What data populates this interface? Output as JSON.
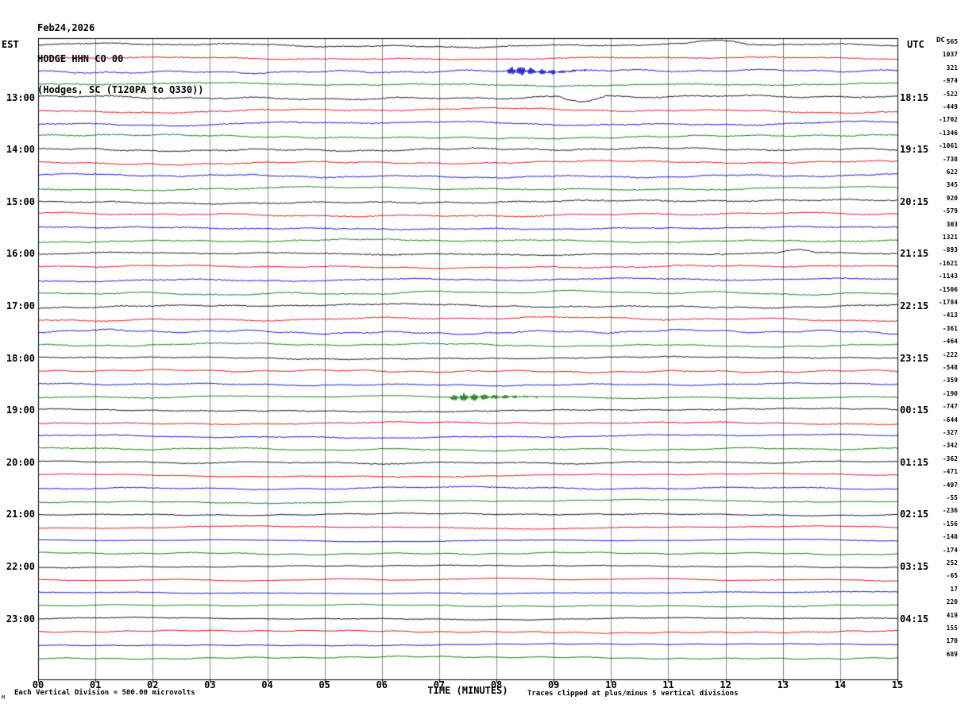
{
  "title": {
    "line1": "Feb24,2026",
    "line2": "HODGE HHN CO 00",
    "line3": "(Hodges, SC (T120PA to Q330))"
  },
  "axes": {
    "left_tz_label": "EST",
    "right_tz_label": "UTC",
    "dc_header": "DC",
    "x_title": "TIME (MINUTES)",
    "x_ticks": [
      "00",
      "01",
      "02",
      "03",
      "04",
      "05",
      "06",
      "07",
      "08",
      "09",
      "10",
      "11",
      "12",
      "13",
      "14",
      "15"
    ],
    "left_hour_labels": [
      "13:00",
      "14:00",
      "15:00",
      "16:00",
      "17:00",
      "18:00",
      "19:00",
      "20:00",
      "21:00",
      "22:00",
      "23:00"
    ],
    "right_utc_labels": [
      "18:15",
      "19:15",
      "20:15",
      "21:15",
      "22:15",
      "23:15",
      "00:15",
      "01:15",
      "02:15",
      "03:15",
      "04:15"
    ]
  },
  "footer": {
    "scale_note": "Each Vertical Division =  500.00 microvolts",
    "clip_note": "Traces clipped at plus/minus 5 vertical divisions",
    "corner_mark": "M"
  },
  "chart_data": {
    "type": "line",
    "subtype": "helicorder_seismogram",
    "station": "HODGE HHN CO 00",
    "location": "Hodges, SC (T120PA to Q330)",
    "date": "Feb24,2026",
    "rows": 48,
    "minutes_per_row": 15,
    "first_row_start_est": "12:00",
    "row_color_cycle": [
      "#000000",
      "#dd0000",
      "#0000cc",
      "#007000"
    ],
    "x_range_minutes": [
      0,
      15
    ],
    "grid": true,
    "vertical_division_microvolts": 500.0,
    "clip_divisions": 5,
    "dc_offsets": [
      565,
      1037,
      321,
      -974,
      -522,
      -449,
      -1702,
      -1346,
      -1061,
      -738,
      622,
      345,
      920,
      -579,
      303,
      1321,
      -893,
      -1621,
      -1143,
      -1506,
      -1784,
      -413,
      -361,
      -464,
      -222,
      -548,
      -359,
      -190,
      -747,
      -644,
      -327,
      -342,
      -362,
      -471,
      -497,
      -55,
      -236,
      -156,
      -140,
      -174,
      252,
      -65,
      17,
      220,
      419,
      155,
      170,
      689
    ],
    "events": [
      {
        "row": 2,
        "start_min": 8.1,
        "end_min": 9.6,
        "amplitude": 7,
        "kind": "burst"
      },
      {
        "row": 27,
        "start_min": 7.1,
        "end_min": 8.9,
        "amplitude": 6,
        "kind": "burst"
      },
      {
        "row": 4,
        "start_min": 9.1,
        "end_min": 9.9,
        "amplitude": -6,
        "kind": "swing"
      },
      {
        "row": 0,
        "start_min": 11.3,
        "end_min": 12.4,
        "amplitude": 4,
        "kind": "swing"
      },
      {
        "row": 16,
        "start_min": 12.9,
        "end_min": 13.6,
        "amplitude": 4,
        "kind": "swing"
      }
    ],
    "noise_seed": 7
  }
}
